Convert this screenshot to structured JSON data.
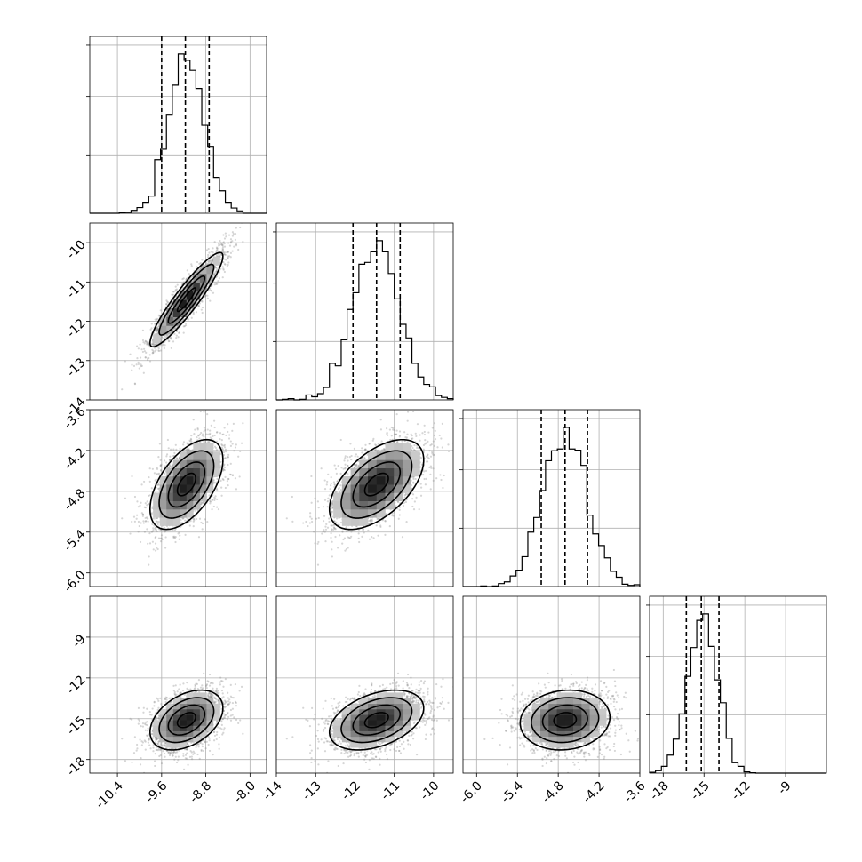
{
  "chart_data": {
    "type": "corner",
    "params": [
      {
        "range": [
          -10.9,
          -7.7
        ],
        "ticks": [
          "-10.4",
          "-9.6",
          "-8.8",
          "-8.0"
        ],
        "tick_values": [
          -10.4,
          -9.6,
          -8.8,
          -8.0
        ],
        "quantiles": [
          -9.6,
          -9.17,
          -8.74
        ],
        "mean": -9.15,
        "sd": 0.33
      },
      {
        "range": [
          -14.0,
          -9.5
        ],
        "ticks": [
          "-14",
          "-13",
          "-12",
          "-11",
          "-10"
        ],
        "tick_values": [
          -14,
          -13,
          -12,
          -11,
          -10
        ],
        "quantiles": [
          -12.05,
          -11.45,
          -10.85
        ],
        "mean": -11.45,
        "sd": 0.6
      },
      {
        "range": [
          -6.2,
          -3.6
        ],
        "ticks": [
          "-6.0",
          "-5.4",
          "-4.8",
          "-4.2",
          "-3.6"
        ],
        "tick_values": [
          -6.0,
          -5.4,
          -4.8,
          -4.2,
          -3.6
        ],
        "quantiles": [
          -5.05,
          -4.7,
          -4.37
        ],
        "mean": -4.7,
        "sd": 0.33
      },
      {
        "range": [
          -19.0,
          -6.0
        ],
        "ticks": [
          "-18",
          "-15",
          "-12",
          "-9"
        ],
        "tick_values": [
          -18,
          -15,
          -12,
          -9
        ],
        "quantiles": [
          -16.3,
          -15.2,
          -13.9
        ],
        "mean": -15.1,
        "sd": 1.1
      }
    ],
    "correlation": [
      [
        1.0,
        0.92,
        0.55,
        0.4
      ],
      [
        0.92,
        1.0,
        0.55,
        0.4
      ],
      [
        0.55,
        0.55,
        1.0,
        0.1
      ],
      [
        0.4,
        0.4,
        0.1,
        1.0
      ]
    ],
    "hist_bins": 30,
    "grid": true,
    "quantile_style": "dashed"
  }
}
